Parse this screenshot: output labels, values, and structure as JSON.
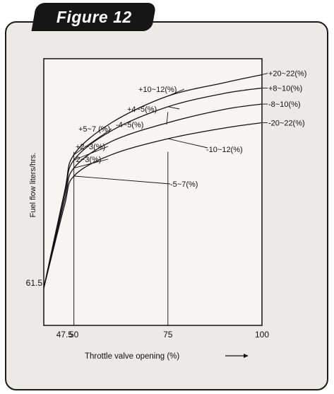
{
  "figure_label": "Figure 12",
  "chart_data": {
    "type": "line",
    "title": "",
    "xlabel": "Throttle valve opening (%)",
    "ylabel": "Fuel flow liters/hrs.",
    "xlim": [
      42,
      100
    ],
    "ylim": [
      0,
      100
    ],
    "x_ticks": [
      "47.5",
      "50",
      "75",
      "100"
    ],
    "y_ticks": [
      "61.5"
    ],
    "grid": false,
    "series": [
      {
        "name": "+20~22(%)",
        "x": [
          42,
          47.5,
          50,
          60,
          75,
          90,
          100
        ],
        "y": [
          14,
          50,
          64,
          76,
          86,
          91,
          94
        ]
      },
      {
        "name": "+8~10(%)",
        "x": [
          42,
          47.5,
          50,
          60,
          75,
          90,
          100
        ],
        "y": [
          14,
          49,
          62,
          73,
          82,
          87,
          89
        ]
      },
      {
        "name": "-8~10(%)",
        "x": [
          42,
          47.5,
          50,
          60,
          75,
          90,
          100
        ],
        "y": [
          14,
          47,
          59,
          69,
          76,
          81,
          83
        ]
      },
      {
        "name": "-20~22(%)",
        "x": [
          42,
          47.5,
          50,
          60,
          75,
          90,
          100
        ],
        "y": [
          14,
          45,
          56,
          64,
          70,
          74,
          76
        ]
      }
    ],
    "annotations": [
      {
        "text": "+10~12(%)",
        "x": 75,
        "y": 86
      },
      {
        "text": "+4~5(%)",
        "x": 75,
        "y": 82
      },
      {
        "text": "-4~5(%)",
        "x": 75,
        "y": 80
      },
      {
        "text": "-10~12(%)",
        "x": 75,
        "y": 70
      },
      {
        "text": "+5~7 (%)",
        "x": 50,
        "y": 64
      },
      {
        "text": "+2~3(%)",
        "x": 50,
        "y": 62
      },
      {
        "text": "-2~3(%)",
        "x": 50,
        "y": 59
      },
      {
        "text": "-5~7(%)",
        "x": 50,
        "y": 56
      }
    ]
  }
}
